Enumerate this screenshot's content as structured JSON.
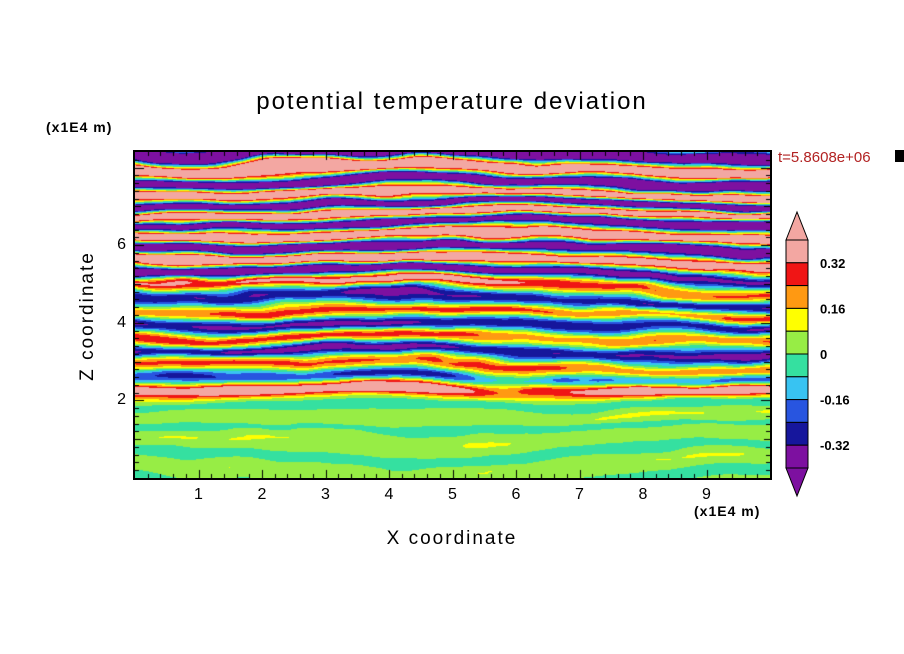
{
  "chart_data": {
    "type": "heatmap",
    "title": "potential temperature deviation",
    "xlabel": "X coordinate",
    "ylabel": "Z coordinate",
    "x_unit": "(x1E4 m)",
    "y_unit": "(x1E4 m)",
    "timestamp": "t=5.8608e+06",
    "timestamp_color": "#b22222",
    "xlim": [
      0,
      10
    ],
    "ylim": [
      0,
      8.4
    ],
    "x_tick_values": [
      1,
      2,
      3,
      4,
      5,
      6,
      7,
      8,
      9
    ],
    "y_tick_values": [
      2,
      4,
      6
    ],
    "grid": false,
    "legend_position": "right-colorbar",
    "levels": [
      -0.32,
      -0.24,
      -0.16,
      -0.08,
      0,
      0.08,
      0.16,
      0.24,
      0.32
    ],
    "palette_low_to_high": [
      "#7d10a0",
      "#16169c",
      "#2855e0",
      "#38c3f2",
      "#35e0a0",
      "#97ed45",
      "#ffff00",
      "#ff9912",
      "#f01515",
      "#f3a7a2"
    ],
    "colorbar_tick_labels": [
      "0.32",
      "0.16",
      "0",
      "-0.16",
      "-0.32"
    ],
    "field_description": "Stratified turbulence field: saturated salmon/purple gravity-wave bands above z=4.5, mixed cyan/green/blue turbulent layers with thin yellow-orange-red streaks between z=2 and z=4.5, and a near-zero light-green region with spring-green patches below z=2."
  }
}
